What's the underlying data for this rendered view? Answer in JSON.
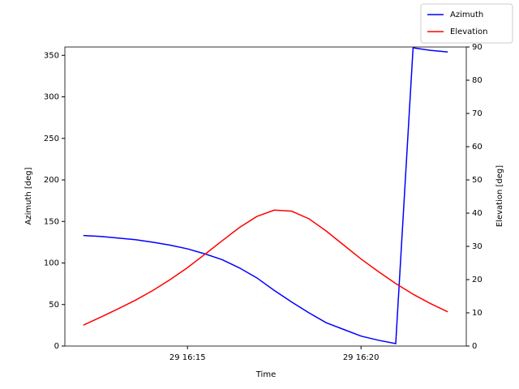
{
  "chart_data": {
    "type": "line",
    "x": [
      "29 16:12:00",
      "29 16:12:30",
      "29 16:13:00",
      "29 16:13:30",
      "29 16:14:00",
      "29 16:14:30",
      "29 16:15:00",
      "29 16:15:30",
      "29 16:16:00",
      "29 16:16:30",
      "29 16:17:00",
      "29 16:17:30",
      "29 16:18:00",
      "29 16:18:30",
      "29 16:19:00",
      "29 16:19:30",
      "29 16:20:00",
      "29 16:20:30",
      "29 16:21:00",
      "29 16:21:30",
      "29 16:22:00",
      "29 16:22:30"
    ],
    "series": [
      {
        "name": "Azimuth",
        "color": "#0000ff",
        "values": [
          133,
          132,
          130,
          128,
          125,
          121.5,
          117,
          111,
          104,
          94,
          82,
          67,
          53,
          40,
          28,
          20,
          12,
          7,
          3,
          359,
          356,
          354
        ]
      },
      {
        "name": "Elevation",
        "color": "#ff0000",
        "axis": "y2",
        "values": [
          6.3,
          8.7,
          11.2,
          13.8,
          16.7,
          20,
          23.6,
          27.6,
          31.7,
          35.7,
          39,
          40.9,
          40.6,
          38.3,
          34.6,
          30.4,
          26.2,
          22.4,
          18.8,
          15.6,
          12.8,
          10.3
        ]
      }
    ],
    "xlabel": "Time",
    "ylabel": "Azimuth [deg]",
    "y2label": "Elevation [deg]",
    "xlim": [
      "29 16:11:28",
      "29 16:23:02"
    ],
    "xticks": [
      {
        "value": "29 16:15:00",
        "label": "29 16:15"
      },
      {
        "value": "29 16:20:00",
        "label": "29 16:20"
      }
    ],
    "ylim": [
      0,
      360
    ],
    "yticks": [
      0,
      50,
      100,
      150,
      200,
      250,
      300,
      350
    ],
    "y2lim": [
      0,
      90
    ],
    "y2ticks": [
      0,
      10,
      20,
      30,
      40,
      50,
      60,
      70,
      80,
      90
    ],
    "legend": "upper right"
  }
}
